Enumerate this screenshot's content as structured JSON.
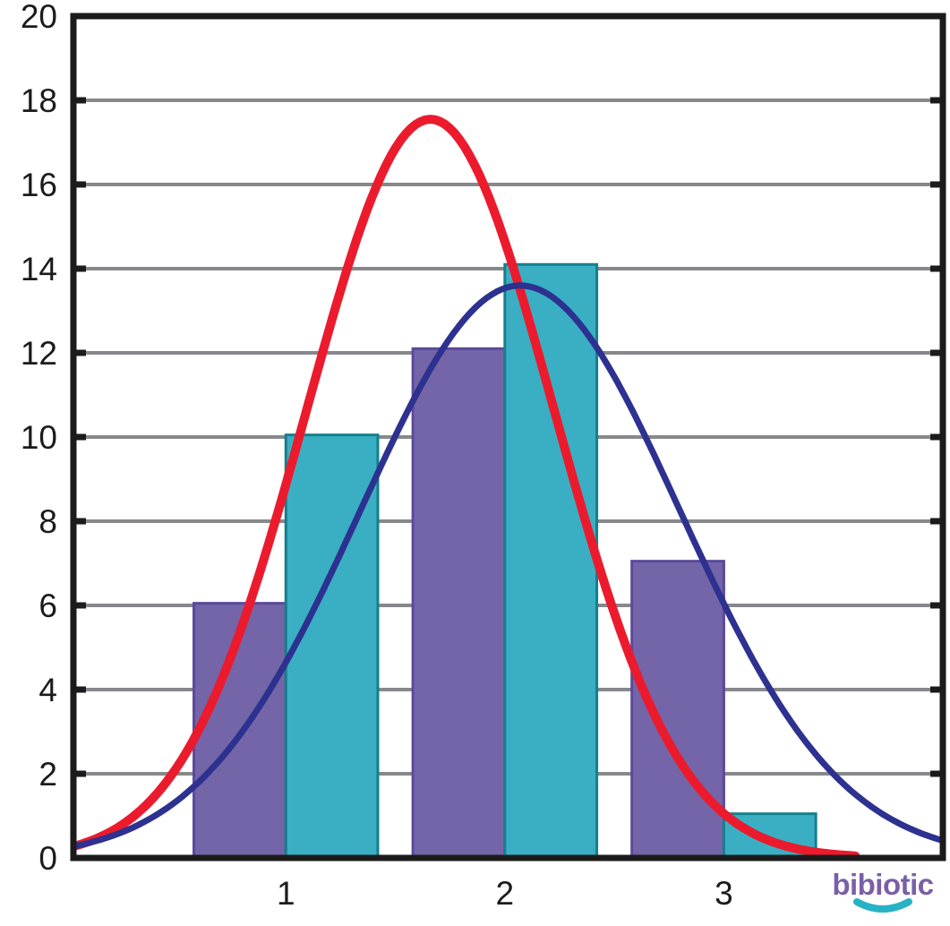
{
  "chart_data": {
    "type": "bar",
    "subtype": "histogram-with-normal-curves",
    "title": "",
    "xlabel": "",
    "ylabel": "",
    "categories": [
      "1",
      "2",
      "3"
    ],
    "series": [
      {
        "name": "purple-bars",
        "type": "bar",
        "values": [
          6.05,
          12.1,
          7.05
        ],
        "fill": "#7465A8",
        "stroke": "#5B4A9B"
      },
      {
        "name": "teal-bars",
        "type": "bar",
        "values": [
          10.05,
          14.1,
          1.05
        ],
        "fill": "#3AAFC3",
        "stroke": "#157F8D"
      }
    ],
    "curves": [
      {
        "name": "red-normal-curve",
        "color": "#EB1B2D",
        "amplitude": 17.55,
        "mean": 1.66,
        "sigma": 0.565,
        "x_start": 0.03,
        "x_end": 3.6,
        "stroke_width": 10
      },
      {
        "name": "blue-normal-curve",
        "color": "#2D3190",
        "amplitude": 13.6,
        "mean": 2.07,
        "sigma": 0.73,
        "x_start": 0.03,
        "x_end": 4.0,
        "stroke_width": 7
      }
    ],
    "axes": {
      "x": {
        "min": 0.03,
        "max": 4.0,
        "tick_positions": [
          1,
          2,
          3
        ],
        "tick_labels": [
          "1",
          "2",
          "3"
        ]
      },
      "y": {
        "min": 0,
        "max": 20,
        "tick_step": 2,
        "tick_values": [
          0,
          2,
          4,
          6,
          8,
          10,
          12,
          14,
          16,
          18,
          20
        ],
        "tick_labels": [
          "0",
          "2",
          "4",
          "6",
          "8",
          "10",
          "12",
          "14",
          "16",
          "18",
          "20"
        ]
      }
    },
    "grid": {
      "on": true,
      "values": [
        2,
        4,
        6,
        8,
        10,
        12,
        14,
        16,
        18
      ],
      "color": "#87888B",
      "width": 4
    },
    "style": {
      "axis_color": "#1B1B1B",
      "axis_width": 7,
      "tick_length": 14,
      "tick_width": 7,
      "bar_width_units": 0.42,
      "bar_stroke_width": 3,
      "label_color": "#1B1B1B"
    },
    "legend": {
      "on": false
    }
  },
  "watermark": {
    "text": "bibiotic",
    "text_color": "#7A5FA8",
    "smile_color": "#27B2C5"
  }
}
